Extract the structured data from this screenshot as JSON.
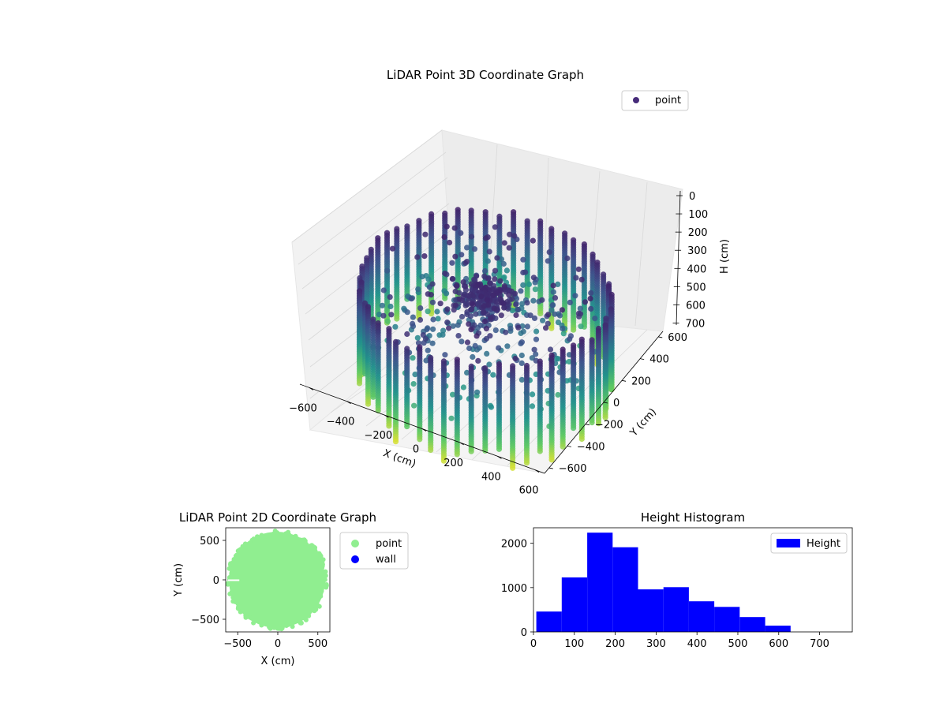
{
  "chart_data": [
    {
      "type": "scatter",
      "projection": "3d",
      "title": "LiDAR Point 3D Coordinate Graph",
      "xlabel": "X (cm)",
      "ylabel": "Y (cm)",
      "zlabel": "H (cm)",
      "xticks": [
        -600,
        -400,
        -200,
        0,
        200,
        400,
        600
      ],
      "yticks": [
        -600,
        -400,
        -200,
        0,
        200,
        400,
        600
      ],
      "zticks": [
        0,
        100,
        200,
        300,
        400,
        500,
        600,
        700
      ],
      "xlim": [
        -650,
        650
      ],
      "ylim": [
        -650,
        650
      ],
      "zlim": [
        0,
        780
      ],
      "z_inverted": true,
      "colormap": "viridis",
      "colormap_stops": [
        "#440154",
        "#3b528b",
        "#21918c",
        "#5ec962",
        "#fde725"
      ],
      "legend": {
        "labels": [
          "point"
        ],
        "location": "top-right"
      },
      "series": [
        {
          "name": "point",
          "shape": "cylindrical scan: wall ring radius ~600 cm spanning height 0-780 cm, plus scattered interior points converging toward center",
          "color": "#472c7a"
        }
      ],
      "grid": true
    },
    {
      "type": "scatter",
      "title": "LiDAR Point 2D Coordinate Graph",
      "xlabel": "X (cm)",
      "ylabel": "Y (cm)",
      "xticks": [
        -500,
        0,
        500
      ],
      "yticks": [
        -500,
        0,
        500
      ],
      "xlim": [
        -650,
        650
      ],
      "ylim": [
        -660,
        660
      ],
      "legend": {
        "labels": [
          "point",
          "wall"
        ],
        "location": "outside-right"
      },
      "series": [
        {
          "name": "point",
          "color": "#90ee90",
          "shape": "filled disk radius ~600 cm"
        },
        {
          "name": "wall",
          "color": "#0000ff",
          "shape": "none visible"
        }
      ],
      "grid": false
    },
    {
      "type": "bar",
      "subtype": "histogram",
      "title": "Height Histogram",
      "xlabel": "",
      "ylabel": "",
      "xticks": [
        0,
        100,
        200,
        300,
        400,
        500,
        600,
        700
      ],
      "yticks": [
        0,
        1000,
        2000
      ],
      "xlim": [
        0,
        780
      ],
      "ylim": [
        0,
        2350
      ],
      "bin_edges": [
        7,
        69.2,
        131.4,
        193.6,
        255.8,
        318,
        380.2,
        442.4,
        504.6,
        566.8,
        629
      ],
      "counts": [
        460,
        1230,
        2240,
        1910,
        960,
        1010,
        690,
        565,
        335,
        140
      ],
      "legend": {
        "labels": [
          "Height"
        ],
        "location": "top-right"
      },
      "series": [
        {
          "name": "Height",
          "color": "#0000ff"
        }
      ],
      "grid": false
    }
  ]
}
